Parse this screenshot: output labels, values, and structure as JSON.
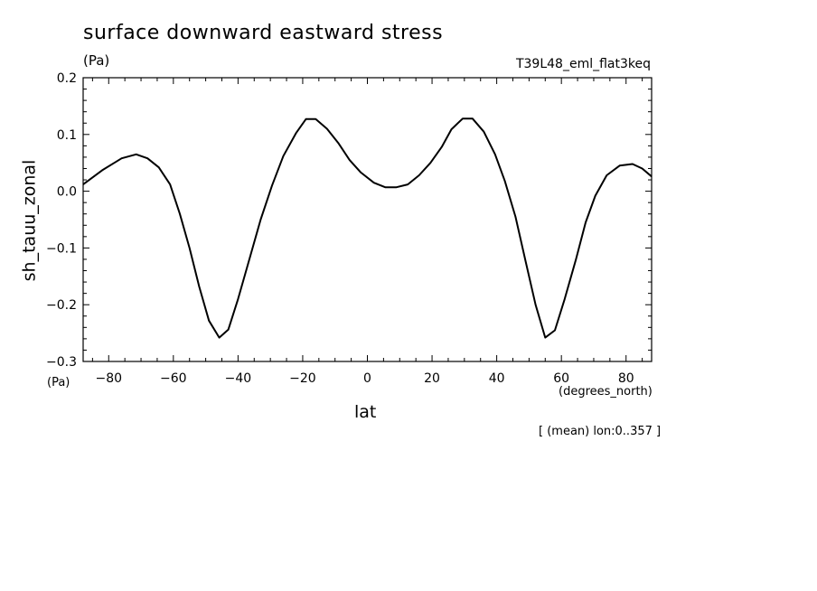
{
  "chart_data": {
    "type": "line",
    "title": "surface downward eastward stress",
    "units_top": "(Pa)",
    "run_name": "T39L48_eml_flat3keq",
    "ylabel": "sh_tauu_zonal",
    "units_left": "(Pa)",
    "xlabel": "lat",
    "xunit": "(degrees_north)",
    "note": "[ (mean) lon:0..357 ]",
    "xlim": [
      -87.9,
      87.9
    ],
    "ylim": [
      -0.3,
      0.2
    ],
    "xticks": [
      -80,
      -60,
      -40,
      -20,
      0,
      20,
      40,
      60,
      80
    ],
    "xtick_labels": [
      "−80",
      "−60",
      "−40",
      "−20",
      "0",
      "20",
      "40",
      "60",
      "80"
    ],
    "yticks": [
      -0.3,
      -0.2,
      -0.1,
      0.0,
      0.1,
      0.2
    ],
    "ytick_labels": [
      "−0.3",
      "−0.2",
      "−0.1",
      "0.0",
      "0.1",
      "0.2"
    ],
    "grid": false,
    "series": [
      {
        "color": "#000000",
        "x": [
          -87.9,
          -82.0,
          -76.0,
          -71.5,
          -68.0,
          -64.5,
          -61.0,
          -58.0,
          -55.0,
          -52.0,
          -49.0,
          -45.8,
          -43.0,
          -40.0,
          -36.5,
          -33.0,
          -29.5,
          -26.0,
          -22.0,
          -19.0,
          -16.0,
          -12.5,
          -9.0,
          -5.5,
          -2.0,
          2.0,
          5.5,
          9.0,
          12.5,
          16.0,
          19.5,
          23.0,
          26.0,
          29.5,
          32.5,
          36.0,
          39.5,
          42.5,
          45.8,
          49.0,
          52.0,
          55.0,
          58.0,
          61.0,
          64.5,
          67.5,
          70.5,
          74.0,
          78.0,
          82.0,
          85.0,
          87.9
        ],
        "y": [
          0.012,
          0.037,
          0.058,
          0.065,
          0.058,
          0.042,
          0.012,
          -0.04,
          -0.1,
          -0.168,
          -0.228,
          -0.258,
          -0.244,
          -0.19,
          -0.12,
          -0.05,
          0.01,
          0.062,
          0.103,
          0.127,
          0.127,
          0.11,
          0.085,
          0.055,
          0.033,
          0.015,
          0.007,
          0.007,
          0.012,
          0.028,
          0.05,
          0.078,
          0.109,
          0.128,
          0.128,
          0.105,
          0.065,
          0.018,
          -0.045,
          -0.125,
          -0.2,
          -0.258,
          -0.245,
          -0.19,
          -0.12,
          -0.055,
          -0.008,
          0.028,
          0.045,
          0.048,
          0.04,
          0.026
        ]
      }
    ]
  }
}
